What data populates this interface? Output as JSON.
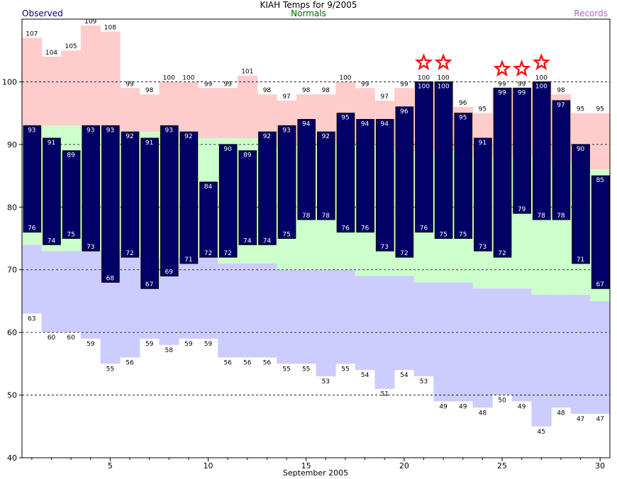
{
  "chart_data": {
    "type": "bar",
    "title": "KIAH Temps for 9/2005",
    "xlabel": "September 2005",
    "ylabel": "",
    "ylim": [
      40,
      110
    ],
    "xlim": [
      0.5,
      30.5
    ],
    "yticks": [
      40,
      50,
      60,
      70,
      80,
      90,
      100
    ],
    "xticks": [
      5,
      10,
      15,
      20,
      25,
      30
    ],
    "grid": "dashed horizontal at 50, 60, 70, 80, 90, 100",
    "legend": [
      "Observed",
      "Normals",
      "Records"
    ],
    "colors": {
      "observed": "#000066",
      "normals": "#ccffcc",
      "record_high": "#ffcccc",
      "record_low": "#ccccff",
      "observed_label": "#000080",
      "normals_label": "#006600",
      "records_label": "#aa66cc",
      "star": "#ff0000"
    },
    "days": [
      1,
      2,
      3,
      4,
      5,
      6,
      7,
      8,
      9,
      10,
      11,
      12,
      13,
      14,
      15,
      16,
      17,
      18,
      19,
      20,
      21,
      22,
      23,
      24,
      25,
      26,
      27,
      28,
      29,
      30
    ],
    "observed_high": [
      93,
      91,
      89,
      93,
      93,
      92,
      91,
      93,
      92,
      84,
      90,
      89,
      92,
      93,
      94,
      92,
      95,
      94,
      94,
      96,
      100,
      100,
      95,
      91,
      99,
      99,
      100,
      97,
      90,
      85
    ],
    "observed_low": [
      76,
      74,
      75,
      73,
      68,
      72,
      67,
      69,
      71,
      72,
      72,
      74,
      74,
      75,
      78,
      78,
      76,
      76,
      73,
      72,
      76,
      75,
      75,
      73,
      72,
      79,
      78,
      78,
      71,
      67
    ],
    "normal_high": [
      93,
      93,
      93,
      93,
      92,
      92,
      92,
      92,
      91,
      91,
      91,
      91,
      91,
      90,
      90,
      90,
      90,
      90,
      90,
      89,
      89,
      89,
      89,
      88,
      88,
      88,
      88,
      87,
      87,
      86
    ],
    "normal_low": [
      74,
      73,
      73,
      73,
      73,
      73,
      72,
      72,
      72,
      72,
      71,
      71,
      71,
      70,
      70,
      70,
      70,
      69,
      69,
      69,
      68,
      68,
      68,
      67,
      67,
      67,
      66,
      66,
      66,
      65
    ],
    "record_high": [
      107,
      104,
      105,
      109,
      108,
      99,
      98,
      100,
      100,
      99,
      99,
      101,
      98,
      97,
      98,
      98,
      100,
      99,
      97,
      99,
      100,
      100,
      96,
      95,
      99,
      99,
      100,
      98,
      95,
      95
    ],
    "record_low": [
      63,
      60,
      60,
      59,
      55,
      56,
      59,
      58,
      59,
      59,
      56,
      56,
      56,
      55,
      55,
      53,
      55,
      54,
      51,
      54,
      53,
      49,
      49,
      48,
      50,
      49,
      45,
      48,
      47,
      47
    ],
    "record_set_days": [
      21,
      22,
      25,
      26,
      27
    ]
  }
}
